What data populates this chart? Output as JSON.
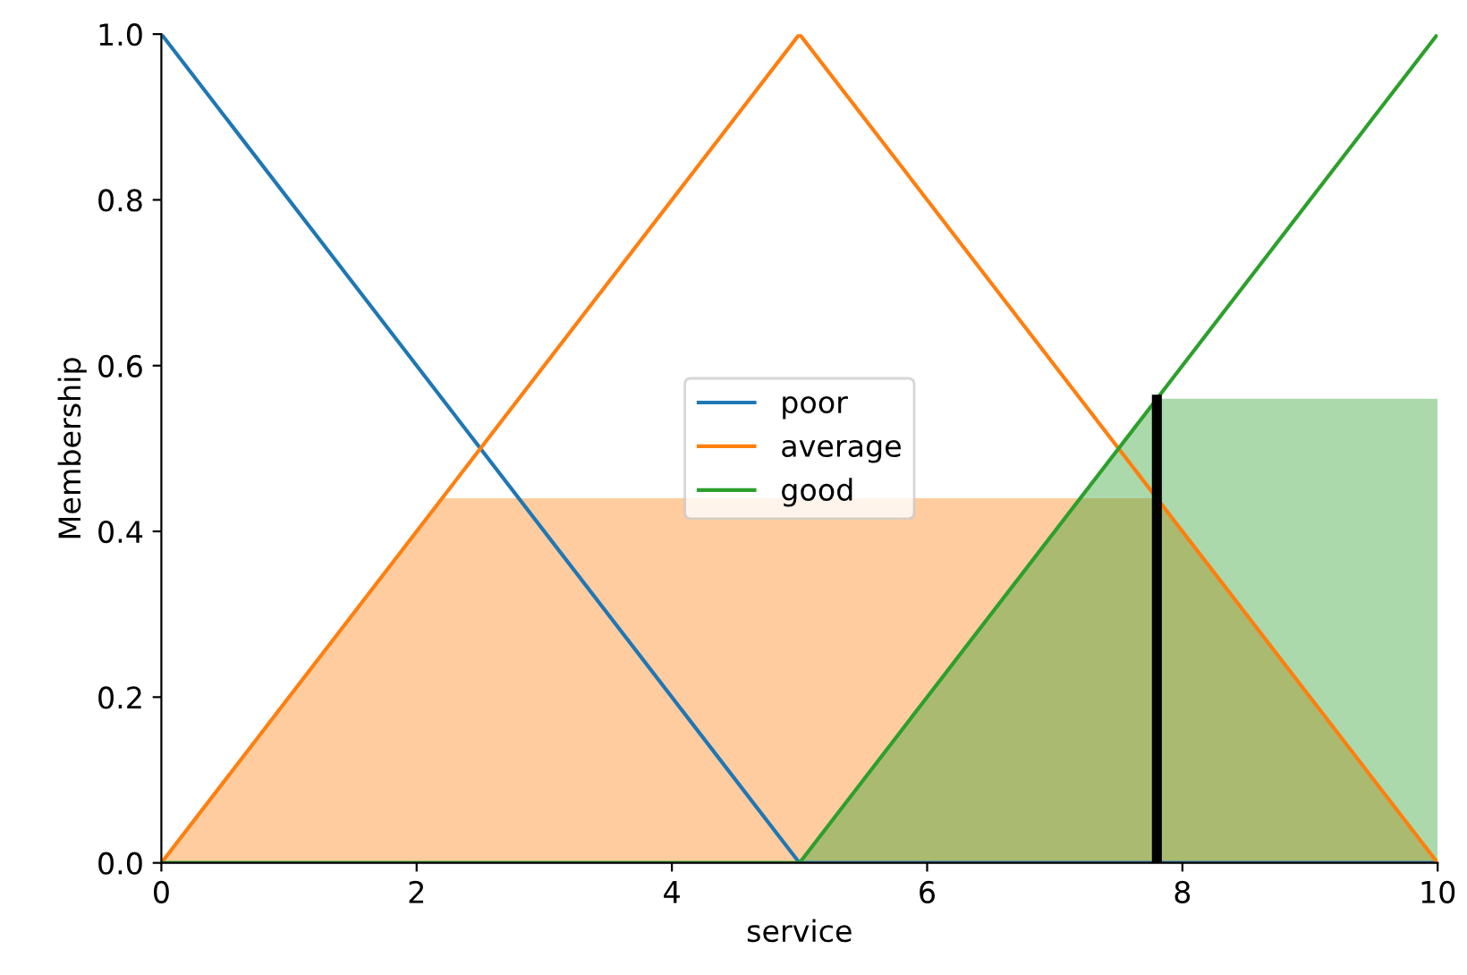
{
  "chart_data": {
    "type": "line",
    "xlabel": "service",
    "ylabel": "Membership",
    "series": [
      {
        "type": "area",
        "color": "#ff7f0e",
        "x": [
          0,
          2.2,
          7.8,
          10
        ],
        "values": [
          0,
          0.44,
          0.44,
          0
        ]
      },
      {
        "type": "area",
        "color": "#2ca02c",
        "x": [
          5,
          7.8,
          10
        ],
        "values": [
          0,
          0.56,
          0.56
        ]
      },
      {
        "name": "poor",
        "color": "#1f77b4",
        "x": [
          0,
          5,
          10
        ],
        "values": [
          1,
          0,
          0
        ]
      },
      {
        "name": "average",
        "color": "#ff7f0e",
        "x": [
          0,
          5,
          10
        ],
        "values": [
          0,
          1,
          0
        ]
      },
      {
        "name": "good",
        "color": "#2ca02c",
        "x": [
          0,
          5,
          10
        ],
        "values": [
          0,
          0,
          1
        ]
      },
      {
        "color": "#000000",
        "x": [
          7.8,
          7.8
        ],
        "values": [
          0,
          0.565
        ]
      }
    ],
    "xlim": [
      0,
      10
    ],
    "xticks": [
      0,
      2,
      4,
      6,
      8,
      10
    ],
    "ylim": [
      0,
      1.0
    ],
    "yticks": [
      {
        "value": 0,
        "label": "0.0"
      },
      {
        "value": 0.2,
        "label": "0.2"
      },
      {
        "value": 0.4,
        "label": "0.4"
      },
      {
        "value": 0.6,
        "label": "0.6"
      },
      {
        "value": 0.8,
        "label": "0.8"
      },
      {
        "value": 1.0,
        "label": "1.0"
      }
    ],
    "legend": "center",
    "grid": false
  }
}
